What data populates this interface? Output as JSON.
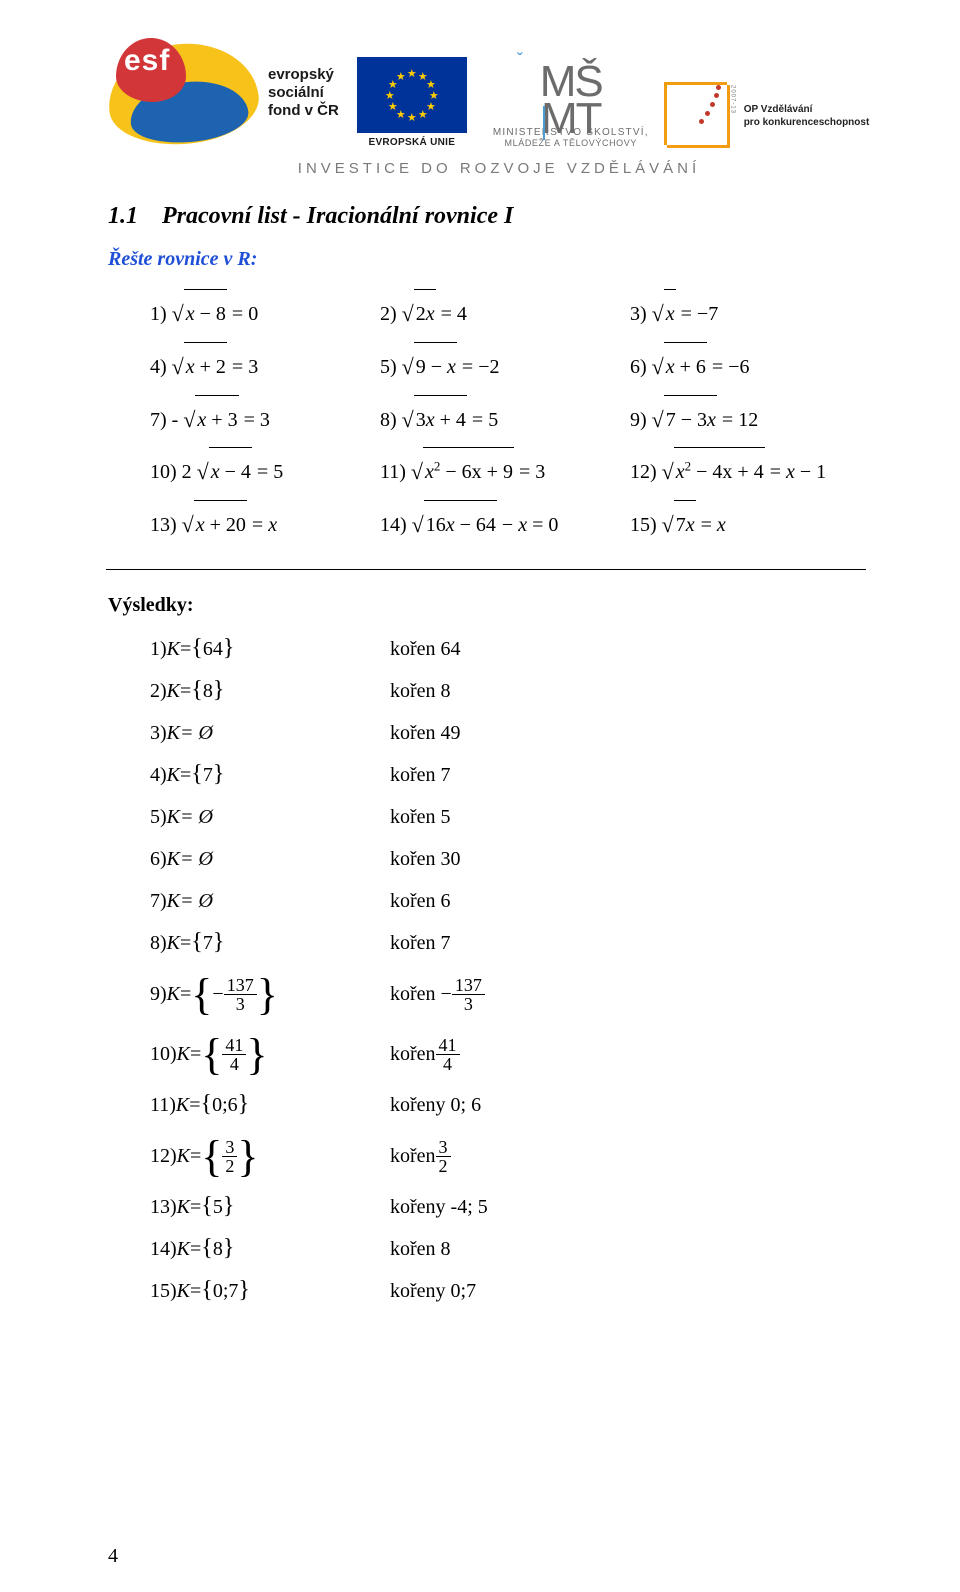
{
  "header": {
    "esf_line1": "evropský",
    "esf_line2": "sociální",
    "esf_line3": "fond v ČR",
    "eu_caption": "EVROPSKÁ UNIE",
    "msmt_big_line1": "MŠ",
    "msmt_big_line2": "MT",
    "msmt_small1": "MINISTERSTVO ŠKOLSTVÍ,",
    "msmt_small2": "MLÁDEŽE A TĚLOVÝCHOVY",
    "op_label1": "OP Vzdělávání",
    "op_label2": "pro konkurenceschopnost",
    "op_side": "2007-13",
    "tagline": "INVESTICE DO ROZVOJE VZDĚLÁVÁNÍ",
    "colors": {
      "eu_blue": "#003399",
      "eu_gold": "#ffcc00",
      "swoosh_yellow": "#f7c21a",
      "swoosh_blue": "#1e63b0",
      "swoosh_red": "#d33638",
      "grey_text": "#7a7a7a",
      "op_orange": "#f39c12",
      "op_dot": "#c0392b",
      "link_blue": "#1f4fd6"
    }
  },
  "section": {
    "number": "1.1",
    "title_rest": "Pracovní list - Iracionální rovnice I",
    "subhead_prefix": "Řešte rovnice v ",
    "subhead_set": "R",
    "subhead_suffix": ":"
  },
  "equations": {
    "r1c1_n": "1)",
    "r1c1_rad": "x − 8",
    "r1c1_tail": " = 0",
    "r1c2_n": "2)",
    "r1c2_rad": "2x",
    "r1c2_tail": " = 4",
    "r1c3_n": "3)",
    "r1c3_rad": "x",
    "r1c3_tail": " = −7",
    "r2c1_n": "4)",
    "r2c1_rad": "x + 2",
    "r2c1_tail": " = 3",
    "r2c2_n": "5)",
    "r2c2_rad": "9 − x",
    "r2c2_tail": " = −2",
    "r2c3_n": "6)",
    "r2c3_rad": "x + 6",
    "r2c3_tail": " = −6",
    "r3c1_n": "7) -",
    "r3c1_rad": "x + 3",
    "r3c1_tail": " = 3",
    "r3c2_n": "8)",
    "r3c2_rad": "3x + 4",
    "r3c2_tail": " = 5",
    "r3c3_n": "9)",
    "r3c3_rad": "7 − 3x",
    "r3c3_tail": " = 12",
    "r4c1_n": "10) 2",
    "r4c1_rad": "x − 4",
    "r4c1_tail": " = 5",
    "r4c2_n": "11)",
    "r4c2_rad": "x",
    "r4c2_exp": "2",
    "r4c2_rad2": " − 6x + 9",
    "r4c2_tail": " = 3",
    "r4c3_n": "12)",
    "r4c3_rad": "x",
    "r4c3_exp": "2",
    "r4c3_rad2": " − 4x + 4",
    "r4c3_tail": " = x − 1",
    "r5c1_n": "13)",
    "r5c1_rad": "x + 20",
    "r5c1_tail": " = x",
    "r5c2_n": "14)",
    "r5c2_rad": "16x − 64",
    "r5c2_tail": " − x = 0",
    "r5c3_n": "15)",
    "r5c3_rad": "7x",
    "r5c3_tail": " = x"
  },
  "results_heading": "Výsledky:",
  "results": [
    {
      "n": "1)",
      "set_pre": "K = ",
      "set_open": "{",
      "set_val": "64",
      "set_close": "}",
      "root": "kořen 64"
    },
    {
      "n": "2)",
      "set_pre": "K = ",
      "set_open": "{",
      "set_val": "8",
      "set_close": "}",
      "root": "kořen 8"
    },
    {
      "n": "3)",
      "set_pre": "K= Ø",
      "root": "kořen 49",
      "plain": true
    },
    {
      "n": "4)",
      "set_pre": "K = ",
      "set_open": "{",
      "set_val": "7",
      "set_close": "}",
      "root": "kořen 7"
    },
    {
      "n": "5)",
      "set_pre": "K= Ø",
      "root": "kořen 5",
      "plain": true
    },
    {
      "n": "6)",
      "set_pre": "K= Ø",
      "root": "kořen 30",
      "plain": true
    },
    {
      "n": "7)",
      "set_pre": "K= Ø",
      "root": "kořen 6",
      "plain": true
    },
    {
      "n": "8)",
      "set_pre": "K = ",
      "set_open": "{",
      "set_val": "7",
      "set_close": "}",
      "root": "kořen 7"
    },
    {
      "n": "9)",
      "set_pre": "K = ",
      "frac": true,
      "neg": "− ",
      "num": "137",
      "den": "3",
      "root_pre": "kořen ",
      "root_neg": "− ",
      "root_num": "137",
      "root_den": "3"
    },
    {
      "n": "10)",
      "set_pre": "K = ",
      "frac": true,
      "num": "41",
      "den": "4",
      "root_pre": "kořen ",
      "root_num": "41",
      "root_den": "4"
    },
    {
      "n": "11)",
      "set_pre": "K = ",
      "set_open": "{",
      "set_val": "0;6",
      "set_close": "}",
      "root": "kořeny 0; 6"
    },
    {
      "n": "12)",
      "set_pre": "K = ",
      "frac": true,
      "num": "3",
      "den": "2",
      "root_pre": "kořen ",
      "root_num": "3",
      "root_den": "2"
    },
    {
      "n": "13)",
      "set_pre": "K = ",
      "set_open": "{",
      "set_val": "5",
      "set_close": "}",
      "root": "kořeny -4; 5"
    },
    {
      "n": "14)",
      "set_pre": "K = ",
      "set_open": "{",
      "set_val": "8",
      "set_close": "}",
      "root": "kořen 8"
    },
    {
      "n": "15)",
      "set_pre": "K = ",
      "set_open": "{",
      "set_val": "0;7",
      "set_close": "}",
      "root": "kořeny 0;7"
    }
  ],
  "page_number": "4"
}
